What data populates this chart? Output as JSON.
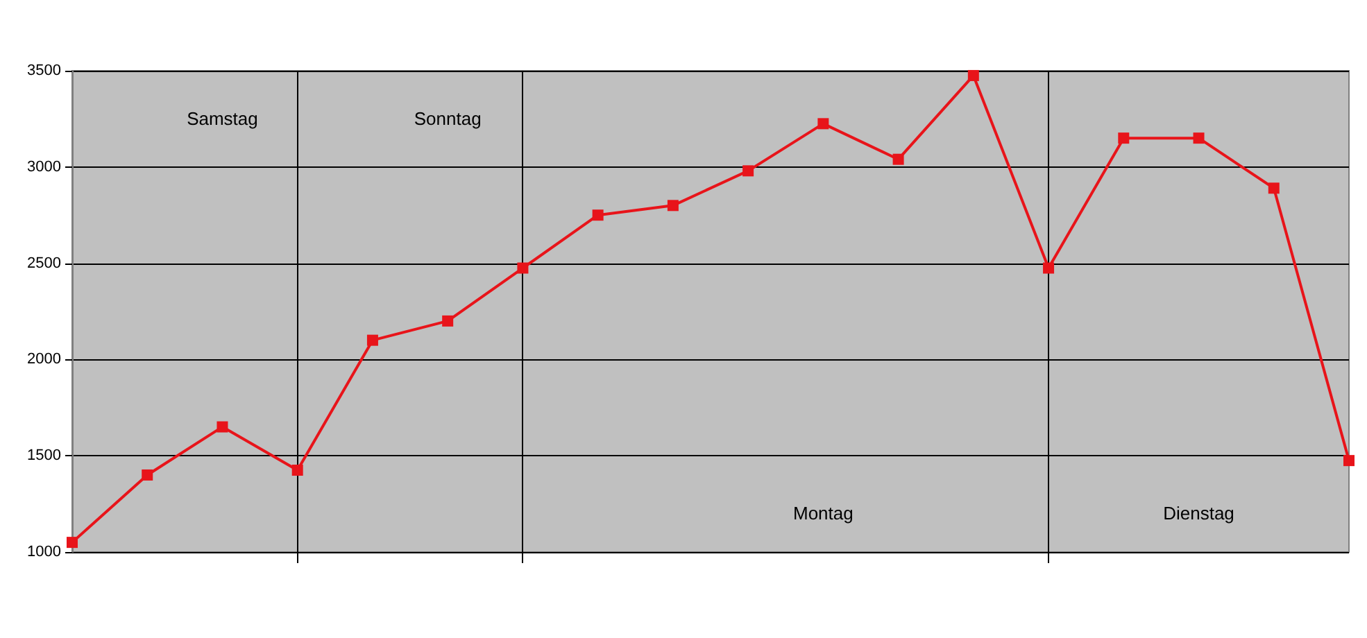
{
  "chart_data": {
    "type": "line",
    "categories": [
      null,
      null,
      null,
      null,
      null,
      null,
      null,
      null,
      null,
      null,
      null,
      null,
      null,
      null,
      null,
      null,
      null,
      null
    ],
    "series": [
      {
        "color": "#e8141a",
        "values": [
          1050,
          1400,
          1650,
          1425,
          2100,
          2200,
          2475,
          2750,
          2800,
          2980,
          3225,
          3040,
          3475,
          2475,
          3150,
          3150,
          2890,
          1475
        ]
      }
    ],
    "ylim": [
      1000,
      3500
    ],
    "yticks": [
      1000,
      1500,
      2000,
      2500,
      3000,
      3500
    ],
    "grid": true,
    "marker": "square",
    "line_style": "solid",
    "annotations": [
      "Samstag",
      "Sonntag",
      "Montag",
      "Dienstag"
    ]
  }
}
